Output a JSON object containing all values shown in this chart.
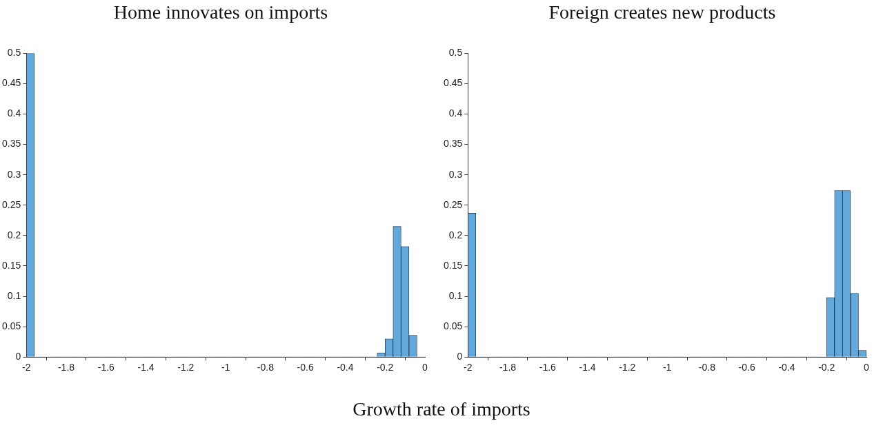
{
  "chart_data": [
    {
      "type": "histogram",
      "title": "Home innovates on imports",
      "xlabel": "Growth rate of imports",
      "color": "#62a8db",
      "bins": [
        -2,
        -1.96,
        -1.92,
        -1.88,
        -1.84,
        -1.8,
        -1.76,
        -1.72,
        -1.68,
        -1.64,
        -1.6,
        -1.56,
        -1.52,
        -1.48,
        -1.44,
        -1.4,
        -1.36,
        -1.32,
        -1.28,
        -1.24,
        -1.2,
        -1.16,
        -1.12,
        -1.08,
        -1.04,
        -1,
        -0.96,
        -0.92,
        -0.88,
        -0.84,
        -0.8,
        -0.76,
        -0.72,
        -0.68,
        -0.64,
        -0.6,
        -0.56,
        -0.52,
        -0.48,
        -0.44,
        -0.4,
        -0.36,
        -0.32,
        -0.28,
        -0.24,
        -0.2,
        -0.16,
        -0.12,
        -0.08,
        -0.04,
        0
      ],
      "values": [
        0.5,
        0,
        0,
        0,
        0,
        0,
        0,
        0,
        0,
        0,
        0,
        0,
        0,
        0,
        0,
        0,
        0,
        0,
        0,
        0,
        0,
        0,
        0,
        0,
        0,
        0,
        0,
        0,
        0,
        0,
        0,
        0,
        0,
        0,
        0,
        0,
        0,
        0,
        0,
        0,
        0,
        0,
        0,
        0,
        0.007,
        0.03,
        0.215,
        0.182,
        0.036,
        0
      ],
      "xlim": [
        -2,
        0
      ],
      "xticks": [
        -2,
        -1.8,
        -1.6,
        -1.4,
        -1.2,
        -1,
        -0.8,
        -0.6,
        -0.4,
        -0.2,
        0
      ],
      "ylim": [
        0,
        0.5
      ],
      "yticks": [
        0,
        0.05,
        0.1,
        0.15,
        0.2,
        0.25,
        0.3,
        0.35,
        0.4,
        0.45,
        0.5
      ],
      "grid": false,
      "legend": false
    },
    {
      "type": "histogram",
      "title": "Foreign creates new products",
      "color": "#62a8db",
      "bins": [
        -2,
        -1.96,
        -1.92,
        -1.88,
        -1.84,
        -1.8,
        -1.76,
        -1.72,
        -1.68,
        -1.64,
        -1.6,
        -1.56,
        -1.52,
        -1.48,
        -1.44,
        -1.4,
        -1.36,
        -1.32,
        -1.28,
        -1.24,
        -1.2,
        -1.16,
        -1.12,
        -1.08,
        -1.04,
        -1,
        -0.96,
        -0.92,
        -0.88,
        -0.84,
        -0.8,
        -0.76,
        -0.72,
        -0.68,
        -0.64,
        -0.6,
        -0.56,
        -0.52,
        -0.48,
        -0.44,
        -0.4,
        -0.36,
        -0.32,
        -0.28,
        -0.24,
        -0.2,
        -0.16,
        -0.12,
        -0.08,
        -0.04,
        0
      ],
      "values": [
        0.237,
        0,
        0,
        0,
        0,
        0,
        0,
        0,
        0,
        0,
        0,
        0,
        0,
        0,
        0,
        0,
        0,
        0,
        0,
        0,
        0,
        0,
        0,
        0,
        0,
        0,
        0,
        0,
        0,
        0,
        0,
        0,
        0,
        0,
        0,
        0,
        0,
        0,
        0,
        0,
        0,
        0,
        0,
        0,
        0,
        0.098,
        0.274,
        0.274,
        0.105,
        0.011
      ],
      "xlim": [
        -2,
        0
      ],
      "xticks": [
        -2,
        -1.8,
        -1.6,
        -1.4,
        -1.2,
        -1,
        -0.8,
        -0.6,
        -0.4,
        -0.2,
        0
      ],
      "ylim": [
        0,
        0.5
      ],
      "yticks": [
        0,
        0.05,
        0.1,
        0.15,
        0.2,
        0.25,
        0.3,
        0.35,
        0.4,
        0.45,
        0.5
      ],
      "grid": false,
      "legend": false
    }
  ]
}
